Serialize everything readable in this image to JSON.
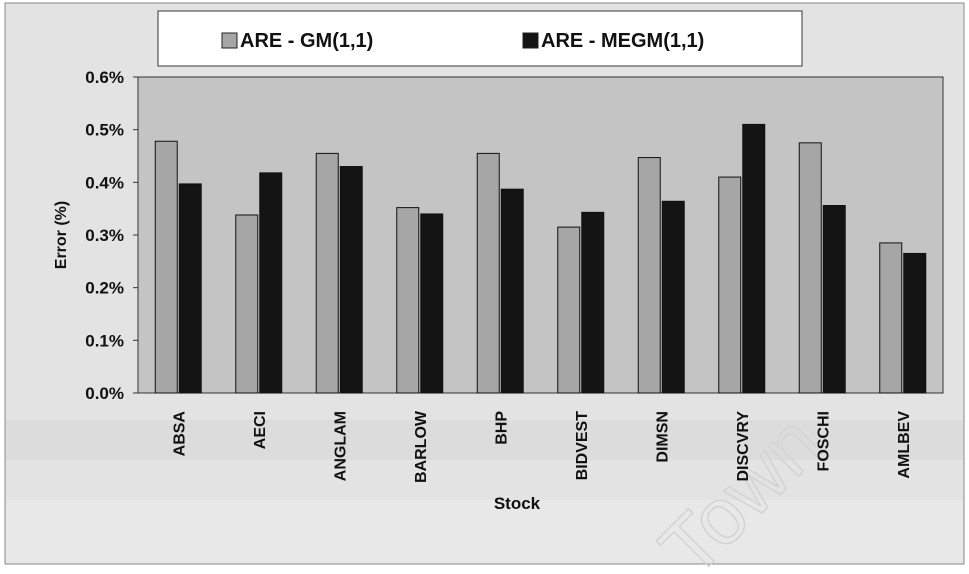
{
  "chart_data": {
    "type": "bar",
    "title": "",
    "xlabel": "Stock",
    "ylabel": "Error (%)",
    "ylim": [
      0,
      0.6
    ],
    "yticks": [
      "0.0%",
      "0.1%",
      "0.2%",
      "0.3%",
      "0.4%",
      "0.5%",
      "0.6%"
    ],
    "yticks_values": [
      0,
      0.1,
      0.2,
      0.3,
      0.4,
      0.5,
      0.6
    ],
    "categories": [
      "ABSA",
      "AECI",
      "ANGLAM",
      "BARLOW",
      "BHP",
      "BIDVEST",
      "DIMSN",
      "DISCVRY",
      "FOSCHI",
      "AMLBEV"
    ],
    "series": [
      {
        "name": "ARE - GM(1,1)",
        "color": "#a6a6a6",
        "values": [
          0.478,
          0.338,
          0.455,
          0.352,
          0.455,
          0.315,
          0.447,
          0.41,
          0.475,
          0.285
        ]
      },
      {
        "name": "ARE - MEGM(1,1)",
        "color": "#141414",
        "values": [
          0.397,
          0.418,
          0.43,
          0.34,
          0.387,
          0.343,
          0.364,
          0.51,
          0.356,
          0.265
        ]
      }
    ],
    "legend_position": "top",
    "grid": false,
    "plot_background": "#c4c4c4",
    "frame_background": "#e3e3e3",
    "watermark": "Town"
  }
}
